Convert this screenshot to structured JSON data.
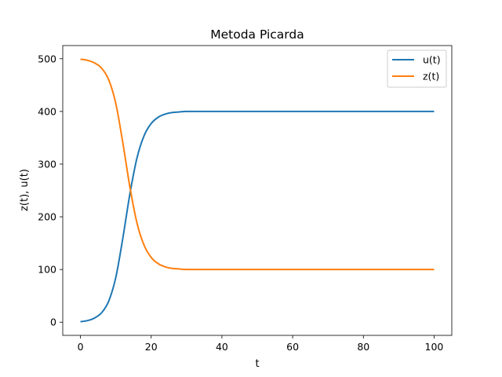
{
  "chart_data": {
    "type": "line",
    "title": "Metoda Picarda",
    "xlabel": "t",
    "ylabel": "z(t), u(t)",
    "xlim": [
      -5,
      105
    ],
    "ylim": [
      -25,
      525
    ],
    "xticks": [
      0,
      20,
      40,
      60,
      80,
      100
    ],
    "yticks": [
      0,
      100,
      200,
      300,
      400,
      500
    ],
    "grid": false,
    "legend_position": "top-right",
    "x": [
      0,
      2,
      4,
      6,
      8,
      10,
      12,
      14,
      16,
      18,
      20,
      22,
      24,
      26,
      28,
      30,
      35,
      40,
      50,
      60,
      70,
      80,
      90,
      100
    ],
    "series": [
      {
        "name": "u(t)",
        "color": "#1f77b4",
        "values": [
          1,
          3,
          8,
          18,
          40,
          85,
          160,
          244,
          312,
          354,
          377,
          389,
          395,
          398,
          399,
          400,
          400,
          400,
          400,
          400,
          400,
          400,
          400,
          400
        ]
      },
      {
        "name": "z(t)",
        "color": "#ff7f0e",
        "values": [
          499,
          497,
          492,
          482,
          460,
          415,
          340,
          256,
          188,
          146,
          123,
          111,
          105,
          102,
          101,
          100,
          100,
          100,
          100,
          100,
          100,
          100,
          100,
          100
        ]
      }
    ]
  }
}
